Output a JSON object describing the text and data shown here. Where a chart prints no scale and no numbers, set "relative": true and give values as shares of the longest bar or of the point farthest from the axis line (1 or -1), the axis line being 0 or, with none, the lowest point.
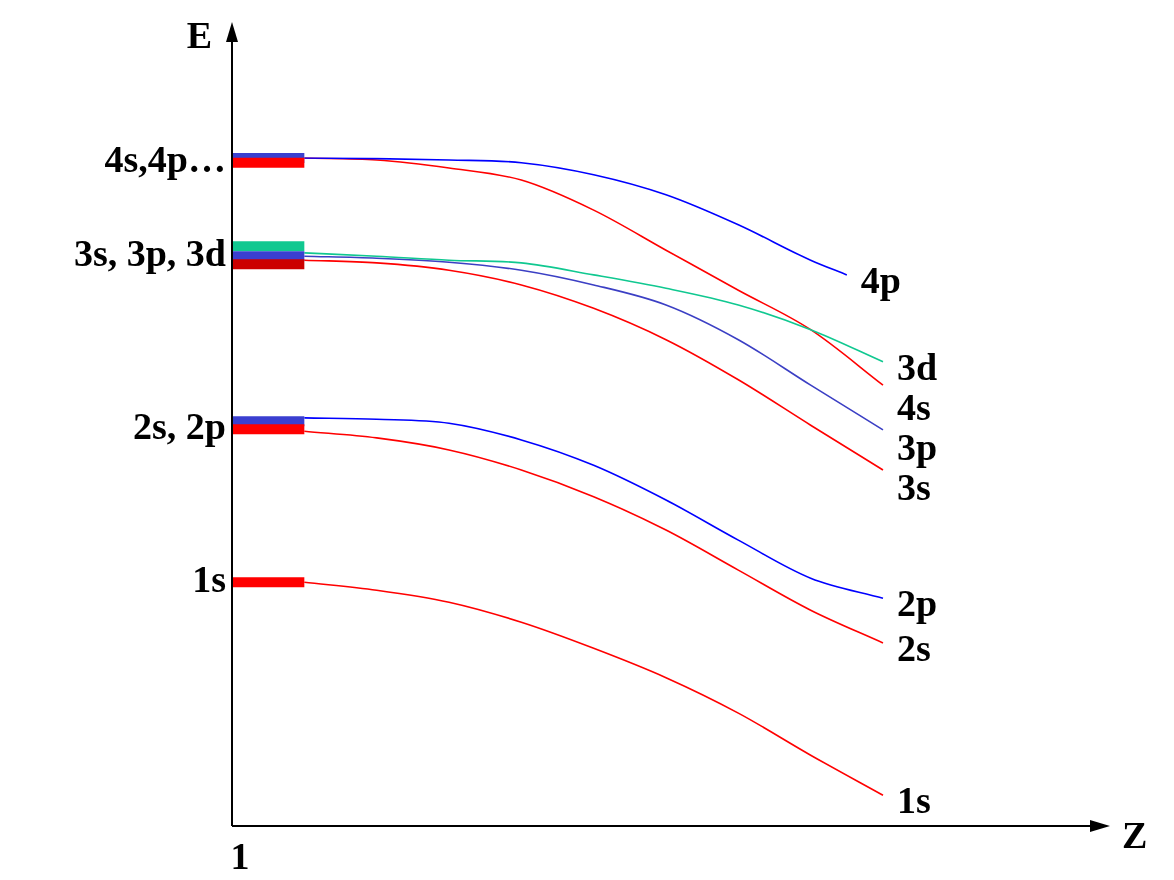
{
  "chart_data": {
    "type": "line",
    "relative": true,
    "xlabel": "Z",
    "ylabel": "E",
    "legend": false,
    "marker": "none",
    "categories": [
      null,
      null,
      null,
      null,
      null,
      null,
      null,
      null,
      null,
      null,
      null,
      null,
      null,
      null,
      null,
      null,
      null,
      null,
      null,
      null,
      null,
      null,
      null,
      null,
      null
    ],
    "annotations": [
      "1"
    ],
    "series": [
      {
        "name": "1s",
        "color": "#ff0000",
        "values": [
          0.365,
          null,
          0.365,
          null,
          null,
          null,
          null,
          null,
          null,
          null,
          null,
          null,
          null,
          null,
          null,
          null,
          null,
          null,
          null,
          null,
          null,
          null,
          null,
          null,
          null
        ]
      },
      {
        "name": "2s, 2p",
        "color": "#ff0000",
        "values": [
          0.594,
          null,
          0.594,
          null,
          null,
          null,
          null,
          null,
          null,
          null,
          null,
          null,
          null,
          null,
          null,
          null,
          null,
          null,
          null,
          null,
          null,
          null,
          null,
          null,
          null
        ]
      },
      {
        "color": "#3a3fd0",
        "values": [
          0.606,
          null,
          0.606,
          null,
          null,
          null,
          null,
          null,
          null,
          null,
          null,
          null,
          null,
          null,
          null,
          null,
          null,
          null,
          null,
          null,
          null,
          null,
          null,
          null,
          null
        ]
      },
      {
        "color": "#cc0000",
        "values": [
          0.841,
          null,
          0.841,
          null,
          null,
          null,
          null,
          null,
          null,
          null,
          null,
          null,
          null,
          null,
          null,
          null,
          null,
          null,
          null,
          null,
          null,
          null,
          null,
          null,
          null
        ]
      },
      {
        "name": "3s, 3p, 3d",
        "color": "#3a3fd0",
        "values": [
          0.853,
          null,
          0.853,
          null,
          null,
          null,
          null,
          null,
          null,
          null,
          null,
          null,
          null,
          null,
          null,
          null,
          null,
          null,
          null,
          null,
          null,
          null,
          null,
          null,
          null
        ]
      },
      {
        "color": "#10c890",
        "values": [
          0.868,
          null,
          0.868,
          null,
          null,
          null,
          null,
          null,
          null,
          null,
          null,
          null,
          null,
          null,
          null,
          null,
          null,
          null,
          null,
          null,
          null,
          null,
          null,
          null,
          null
        ]
      },
      {
        "name": "4s,4p…",
        "color": "#ff0000",
        "values": [
          0.993,
          null,
          0.993,
          null,
          null,
          null,
          null,
          null,
          null,
          null,
          null,
          null,
          null,
          null,
          null,
          null,
          null,
          null,
          null,
          null,
          null,
          null,
          null,
          null,
          null
        ]
      },
      {
        "color": "#3a3fd0",
        "values": [
          1.0,
          null,
          1.0,
          null,
          null,
          null,
          null,
          null,
          null,
          null,
          null,
          null,
          null,
          null,
          null,
          null,
          null,
          null,
          null,
          null,
          null,
          null,
          null,
          null,
          null
        ]
      },
      {
        "name": "4p",
        "color": "#0000ff",
        "values": [
          null,
          null,
          1.0,
          null,
          0.999,
          null,
          0.997,
          null,
          0.993,
          null,
          0.975,
          null,
          0.945,
          null,
          0.9,
          null,
          0.847,
          0.825,
          null,
          null,
          null,
          null,
          null,
          null,
          null
        ]
      },
      {
        "name": "3d",
        "color": "#10c890",
        "values": [
          null,
          null,
          0.858,
          null,
          0.853,
          null,
          0.847,
          null,
          0.843,
          null,
          0.825,
          null,
          0.805,
          null,
          0.78,
          null,
          0.743,
          null,
          0.695,
          null,
          null,
          null,
          null,
          null,
          null
        ]
      },
      {
        "name": "4s",
        "color": "#ff0000",
        "values": [
          null,
          null,
          1.0,
          null,
          0.997,
          null,
          0.985,
          null,
          0.967,
          null,
          0.922,
          null,
          0.862,
          null,
          0.802,
          null,
          0.743,
          null,
          0.66,
          null,
          null,
          null,
          null,
          null,
          null
        ]
      },
      {
        "name": "3p",
        "color": "#3b3fc4",
        "values": [
          null,
          null,
          0.853,
          null,
          0.85,
          null,
          0.844,
          null,
          0.832,
          null,
          0.81,
          null,
          0.78,
          null,
          0.728,
          null,
          0.66,
          null,
          0.593,
          null,
          null,
          null,
          null,
          null,
          null
        ]
      },
      {
        "name": "3s",
        "color": "#ff0000",
        "values": [
          null,
          null,
          0.847,
          null,
          0.843,
          null,
          0.832,
          null,
          0.81,
          null,
          0.775,
          null,
          0.728,
          null,
          0.668,
          null,
          0.6,
          null,
          0.533,
          null,
          null,
          null,
          null,
          null,
          null
        ]
      },
      {
        "name": "2p",
        "color": "#0000ff",
        "values": [
          null,
          null,
          0.611,
          null,
          0.609,
          null,
          0.603,
          null,
          0.578,
          null,
          0.54,
          null,
          0.488,
          null,
          0.428,
          null,
          0.371,
          null,
          0.341,
          null,
          null,
          null,
          null,
          null,
          null
        ]
      },
      {
        "name": "2s",
        "color": "#ff0000",
        "values": [
          null,
          null,
          0.591,
          null,
          0.581,
          null,
          0.563,
          null,
          0.533,
          null,
          0.493,
          null,
          0.443,
          null,
          0.383,
          null,
          0.323,
          null,
          0.274,
          null,
          null,
          null,
          null,
          null,
          null
        ]
      },
      {
        "name": "1s",
        "color": "#ff0000",
        "values": [
          null,
          null,
          0.365,
          null,
          0.353,
          null,
          0.335,
          null,
          0.305,
          null,
          0.266,
          null,
          0.222,
          null,
          0.169,
          null,
          0.106,
          null,
          0.046,
          null,
          null,
          null,
          null,
          null,
          null
        ]
      }
    ]
  }
}
